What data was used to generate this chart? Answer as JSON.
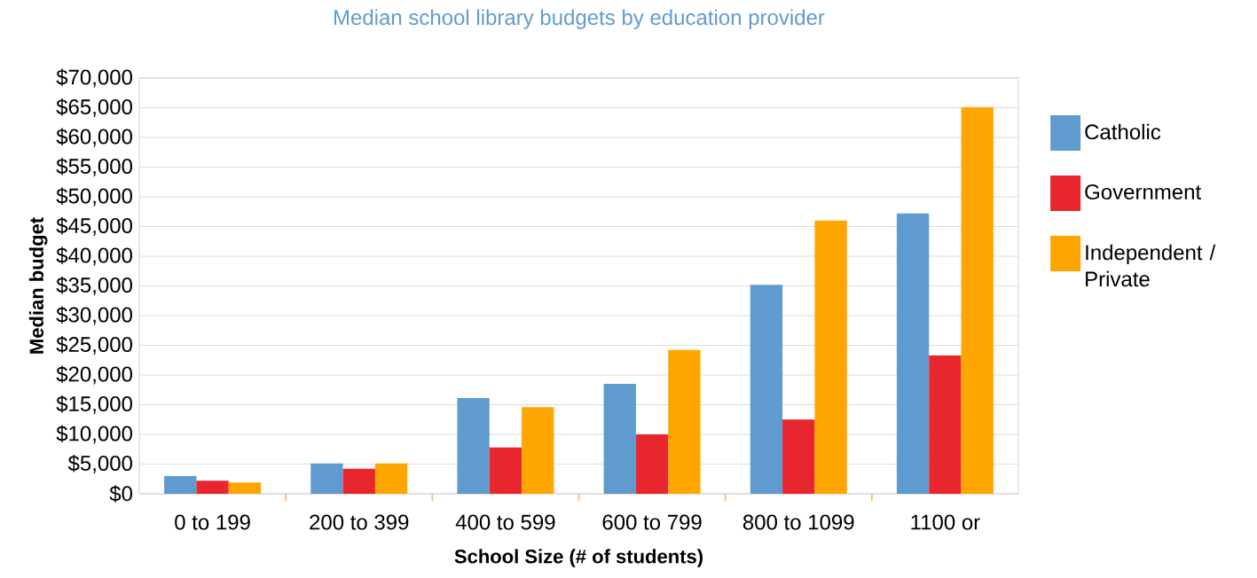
{
  "chart_data": {
    "type": "bar",
    "title": "Median school library budgets by education provider",
    "xlabel": "School Size (# of students)",
    "ylabel": "Median budget",
    "categories": [
      "0 to 199",
      "200 to 399",
      "400 to 599",
      "600 to 799",
      "800 to 1099",
      "1100 or"
    ],
    "series": [
      {
        "name": "Catholic",
        "color": "#5f9bcf",
        "values": [
          3000,
          5100,
          16100,
          18500,
          35200,
          47200
        ]
      },
      {
        "name": "Government",
        "color": "#e8262e",
        "values": [
          2200,
          4200,
          7800,
          10000,
          12500,
          23300
        ]
      },
      {
        "name": "Independent / Private",
        "color": "#ffa500",
        "values": [
          1900,
          5100,
          14600,
          24200,
          46000,
          65100
        ]
      }
    ],
    "ylim": [
      0,
      70000
    ],
    "yticks": [
      {
        "value": 0,
        "label": "$0"
      },
      {
        "value": 5000,
        "label": "$5,000"
      },
      {
        "value": 10000,
        "label": "$10,000"
      },
      {
        "value": 15000,
        "label": "$15,000"
      },
      {
        "value": 20000,
        "label": "$20,000"
      },
      {
        "value": 25000,
        "label": "$25,000"
      },
      {
        "value": 30000,
        "label": "$30,000"
      },
      {
        "value": 35000,
        "label": "$35,000"
      },
      {
        "value": 40000,
        "label": "$40,000"
      },
      {
        "value": 45000,
        "label": "$45,000"
      },
      {
        "value": 50000,
        "label": "$50,000"
      },
      {
        "value": 55000,
        "label": "$55,000"
      },
      {
        "value": 60000,
        "label": "$60,000"
      },
      {
        "value": 65000,
        "label": "$65,000"
      },
      {
        "value": 70000,
        "label": "$70,000"
      }
    ],
    "grid": "y",
    "legend": "right"
  }
}
